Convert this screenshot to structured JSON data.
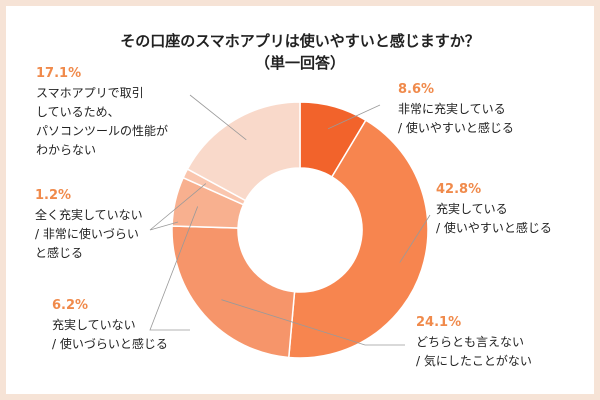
{
  "title_line1": "その口座のスマホアプリは使いやすいと感じますか？",
  "title_line2": "（単一回答）",
  "chart_data": {
    "type": "pie",
    "donut": true,
    "start": "12 o'clock",
    "direction": "clockwise",
    "title": "その口座のスマホアプリは使いやすいと感じますか？（単一回答）",
    "slices": [
      {
        "value": 8.6,
        "pct_label": "8.6%",
        "label": "非常に充実している\n/ 使いやすいと感じる",
        "color": "#f2632b"
      },
      {
        "value": 42.8,
        "pct_label": "42.8%",
        "label": "充実している\n/ 使いやすいと感じる",
        "color": "#f7854f"
      },
      {
        "value": 24.1,
        "pct_label": "24.1%",
        "label": "どちらとも言えない\n/ 気にしたことがない",
        "color": "#f6956a"
      },
      {
        "value": 6.2,
        "pct_label": "6.2%",
        "label": "充実していない\n/ 使いづらいと感じる",
        "color": "#f8b08f"
      },
      {
        "value": 1.2,
        "pct_label": "1.2%",
        "label": "全く充実していない\n/ 非常に使いづらい\nと感じる",
        "color": "#fac6ae"
      },
      {
        "value": 17.1,
        "pct_label": "17.1%",
        "label": "スマホアプリで取引\nしているため、\nパソコンツールの性能が\nわからない",
        "color": "#f9d9ca"
      }
    ]
  }
}
